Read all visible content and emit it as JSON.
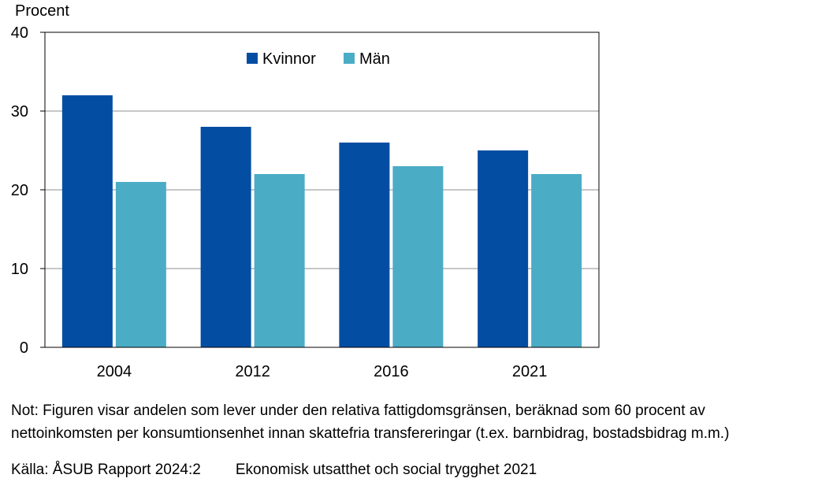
{
  "chart_data": {
    "type": "bar",
    "ylabel": "Procent",
    "ylim": [
      0,
      40
    ],
    "yticks": [
      0,
      10,
      20,
      30,
      40
    ],
    "categories": [
      "2004",
      "2012",
      "2016",
      "2021"
    ],
    "series": [
      {
        "name": "Kvinnor",
        "color": "#034EA2",
        "values": [
          32,
          28,
          26,
          25
        ]
      },
      {
        "name": "Män",
        "color": "#4BACC6",
        "values": [
          21,
          22,
          23,
          22
        ]
      }
    ],
    "grid": "horizontal",
    "legend_position": "top-center"
  },
  "note": {
    "line1": "Not: Figuren visar andelen som lever under den relativa fattigdomsgränsen, beräknad som 60 procent av",
    "line2": "nettoinkomsten per konsumtionsenhet innan skattefria transfereringar (t.ex. barnbidrag, bostadsbidrag m.m.)"
  },
  "source": {
    "label": "Källa: ÅSUB Rapport 2024:2",
    "title": "Ekonomisk utsatthet och social trygghet 2021"
  }
}
